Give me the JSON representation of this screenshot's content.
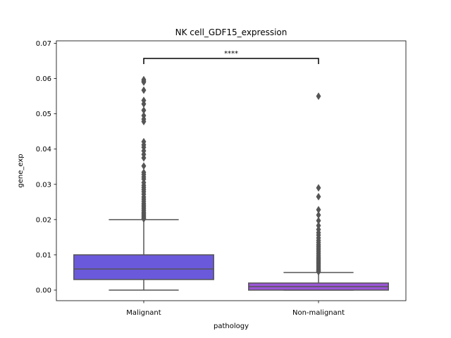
{
  "chart_data": {
    "type": "box",
    "title": "NK cell_GDF15_expression",
    "xlabel": "pathology",
    "ylabel": "gene_exp",
    "ylim": [
      -0.003,
      0.0707
    ],
    "yticks": [
      0.0,
      0.01,
      0.02,
      0.03,
      0.04,
      0.05,
      0.06,
      0.07
    ],
    "ytick_labels": [
      "0.00",
      "0.01",
      "0.02",
      "0.03",
      "0.04",
      "0.05",
      "0.06",
      "0.07"
    ],
    "categories": [
      "Malignant",
      "Non-malignant"
    ],
    "boxes": [
      {
        "category": "Malignant",
        "color": "#6A5ADB",
        "whisker_low": 0.0,
        "q1": 0.003,
        "median": 0.006,
        "q3": 0.01,
        "whisker_high": 0.02,
        "outliers": [
          0.0597,
          0.0593,
          0.059,
          0.0567,
          0.0538,
          0.0528,
          0.051,
          0.0495,
          0.0485,
          0.0478,
          0.0421,
          0.0412,
          0.0405,
          0.0395,
          0.0385,
          0.0375,
          0.0352,
          0.0334,
          0.0328,
          0.0321,
          0.0315,
          0.0305,
          0.0297,
          0.0291,
          0.0285,
          0.0279,
          0.0272,
          0.0264,
          0.0258,
          0.0252,
          0.0246,
          0.0241,
          0.0236,
          0.0231,
          0.0226,
          0.0221,
          0.0217,
          0.0213,
          0.0209,
          0.0205,
          0.0202
        ]
      },
      {
        "category": "Non-malignant",
        "color": "#9B55D6",
        "whisker_low": 0.0,
        "q1": 0.0,
        "median": 0.001,
        "q3": 0.002,
        "whisker_high": 0.005,
        "outliers": [
          0.055,
          0.029,
          0.0265,
          0.0228,
          0.0213,
          0.0197,
          0.0183,
          0.0172,
          0.0163,
          0.0156,
          0.0148,
          0.0141,
          0.0135,
          0.0129,
          0.0124,
          0.0119,
          0.0114,
          0.0109,
          0.0104,
          0.0099,
          0.0094,
          0.009,
          0.0086,
          0.0082,
          0.0078,
          0.0074,
          0.007,
          0.0066,
          0.0062,
          0.0058,
          0.0055,
          0.0052
        ]
      }
    ],
    "annotation": {
      "text": "****",
      "between": [
        "Malignant",
        "Non-malignant"
      ],
      "y": 0.0657
    },
    "line_color": "#555555",
    "grid": false,
    "legend": "none"
  }
}
